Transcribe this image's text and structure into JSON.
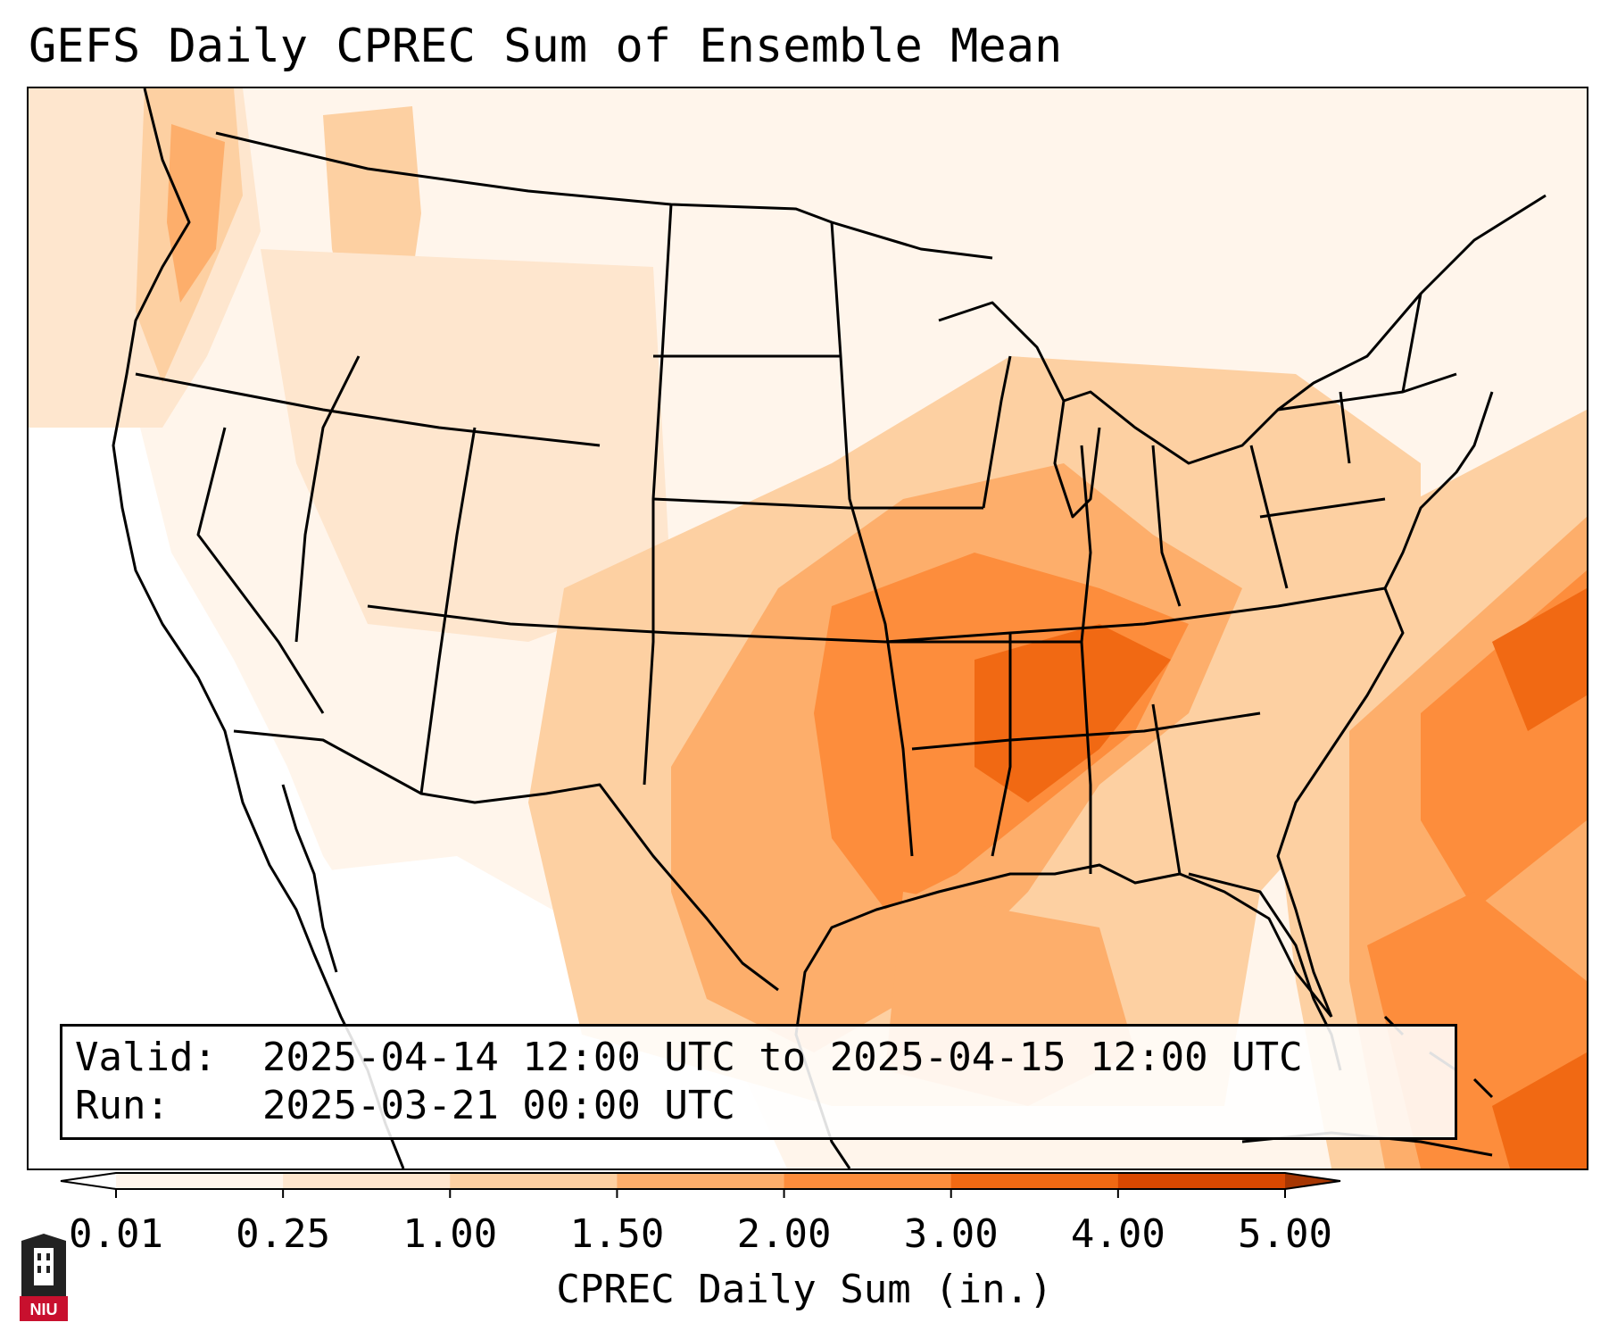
{
  "title": "GEFS Daily CPREC Sum of Ensemble Mean",
  "info_box": {
    "valid_label": "Valid:",
    "valid_value": "2025-04-14 12:00 UTC to 2025-04-15 12:00 UTC",
    "run_label": "Run:",
    "run_value": "2025-03-21 00:00 UTC"
  },
  "colorbar": {
    "label": "CPREC Daily Sum (in.)",
    "ticks": [
      "0.01",
      "0.25",
      "1.00",
      "1.50",
      "2.00",
      "3.00",
      "4.00",
      "5.00"
    ],
    "colors": [
      "#fff5eb",
      "#fee6ce",
      "#fdd0a2",
      "#fdae6b",
      "#fd8d3c",
      "#f16913",
      "#d94801"
    ],
    "under_color": "#ffffff",
    "over_color": "#a63603"
  },
  "logo": {
    "text": "NIU",
    "icon": "university-tower-icon"
  },
  "map": {
    "projection": "lambert-conformal",
    "region": "CONUS",
    "background_color": "#ffffff",
    "border_color": "#000000"
  }
}
